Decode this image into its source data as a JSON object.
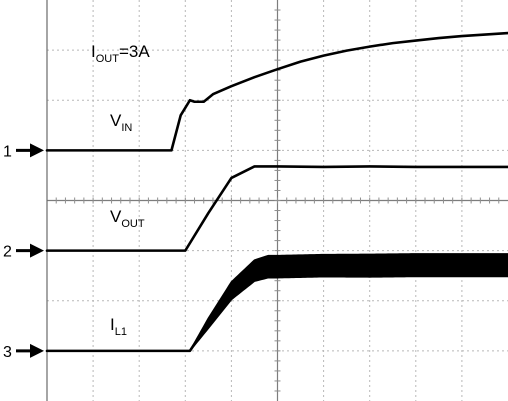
{
  "chart_data": {
    "type": "line",
    "title": "",
    "xlabel": "",
    "ylabel": "",
    "grid": true,
    "xlim": [
      0,
      10
    ],
    "ylim": [
      -0.5,
      7.5
    ],
    "divisions": {
      "x": 10,
      "y": 8
    },
    "annotations": [
      {
        "name": "iout-label",
        "main": "I",
        "sub": "OUT",
        "suffix": "=3A"
      },
      {
        "name": "vin-label",
        "main": "V",
        "sub": "IN",
        "suffix": ""
      },
      {
        "name": "vout-label",
        "main": "V",
        "sub": "OUT",
        "suffix": ""
      },
      {
        "name": "il1-label",
        "main": "I",
        "sub": "L1",
        "suffix": ""
      }
    ],
    "channel_markers": [
      {
        "label": "1",
        "y": 4.5
      },
      {
        "label": "2",
        "y": 2.5
      },
      {
        "label": "3",
        "y": 0.5
      }
    ],
    "series": [
      {
        "name": "V",
        "x": [
          0,
          2.7,
          2.9,
          3.1,
          3.2,
          3.4,
          3.6,
          4.0,
          4.5,
          5.0,
          5.5,
          6.0,
          6.5,
          7.0,
          7.5,
          8.0,
          8.5,
          9.0,
          9.5,
          10.0
        ],
        "values": [
          4.5,
          4.5,
          5.2,
          5.5,
          5.47,
          5.47,
          5.62,
          5.78,
          5.96,
          6.12,
          6.27,
          6.39,
          6.49,
          6.57,
          6.64,
          6.69,
          6.74,
          6.78,
          6.81,
          6.84
        ]
      },
      {
        "name": "V",
        "x": [
          0,
          3.0,
          3.5,
          4.0,
          4.5,
          5.0,
          6.0,
          7.0,
          8.0,
          9.0,
          10.0
        ],
        "values": [
          2.5,
          2.5,
          3.25,
          3.95,
          4.18,
          4.18,
          4.17,
          4.18,
          4.17,
          4.17,
          4.17
        ]
      },
      {
        "name": "I",
        "x": [
          0,
          3.1,
          3.5,
          4.0,
          4.5,
          4.8,
          5.0,
          6.0,
          7.0,
          8.0,
          9.0,
          10.0
        ],
        "values": [
          0.5,
          0.5,
          1.05,
          1.7,
          2.1,
          2.18,
          2.18,
          2.2,
          2.2,
          2.21,
          2.21,
          2.21
        ],
        "ripple": [
          0,
          0,
          0.2,
          0.35,
          0.42,
          0.44,
          0.44,
          0.44,
          0.45,
          0.45,
          0.45,
          0.45
        ]
      }
    ]
  }
}
